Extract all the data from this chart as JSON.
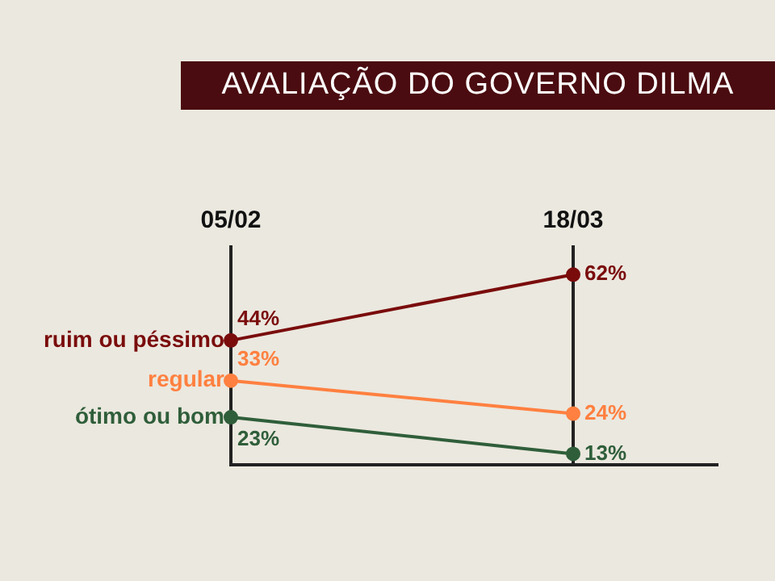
{
  "chart_data": {
    "type": "line",
    "title": "AVALIAÇÃO DO GOVERNO DILMA",
    "categories": [
      "05/02",
      "18/03"
    ],
    "series": [
      {
        "name": "ruim ou péssimo",
        "color": "#7a0c0c",
        "values": [
          44,
          62
        ],
        "value_labels": [
          "44%",
          "62%"
        ]
      },
      {
        "name": "regular",
        "color": "#ff8040",
        "values": [
          33,
          24
        ],
        "value_labels": [
          "33%",
          "24%"
        ]
      },
      {
        "name": "ótimo ou bom",
        "color": "#2f5e3a",
        "values": [
          23,
          13
        ],
        "value_labels": [
          "23%",
          "13%"
        ]
      }
    ],
    "tick_labels": "x",
    "grid": "x",
    "legend": false,
    "marker": "circle"
  }
}
